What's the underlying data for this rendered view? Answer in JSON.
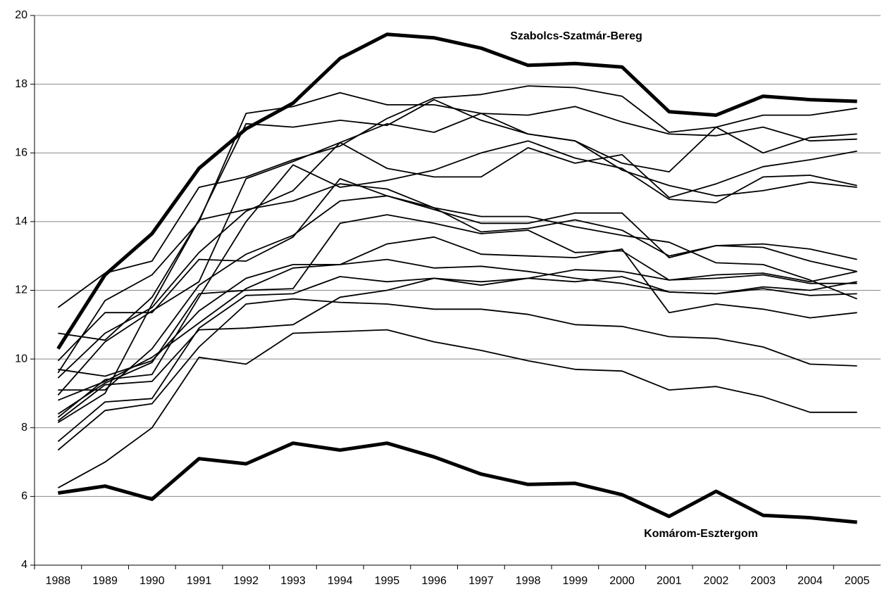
{
  "chart_data": {
    "type": "line",
    "categories": [
      "1988",
      "1989",
      "1990",
      "1991",
      "1992",
      "1993",
      "1994",
      "1995",
      "1996",
      "1997",
      "1998",
      "1999",
      "2000",
      "2001",
      "2002",
      "2003",
      "2004",
      "2005"
    ],
    "ylim": [
      4,
      20
    ],
    "yticks": [
      4,
      6,
      8,
      10,
      12,
      14,
      16,
      18,
      20
    ],
    "grid": true,
    "series": [
      {
        "name": "Szabolcs-Szatmár-Bereg",
        "color": "#000000",
        "values": [
          10.3,
          12.45,
          13.65,
          15.55,
          16.7,
          17.45,
          18.75,
          19.45,
          19.35,
          19.05,
          18.55,
          18.6,
          18.5,
          17.2,
          17.1,
          17.65,
          17.55,
          17.5
        ]
      },
      {
        "name": "Komárom-Esztergom",
        "color": "#000000",
        "values": [
          6.1,
          6.3,
          5.92,
          7.1,
          6.95,
          7.55,
          7.35,
          7.55,
          7.15,
          6.65,
          6.35,
          6.38,
          6.05,
          5.42,
          6.15,
          5.45,
          5.38,
          5.25
        ]
      },
      {
        "color": "#000000",
        "values": [
          11.5,
          12.5,
          12.85,
          15.0,
          15.3,
          15.8,
          16.2,
          17.0,
          17.6,
          17.7,
          17.95,
          17.9,
          17.65,
          16.6,
          16.75,
          17.1,
          17.1,
          17.3
        ]
      },
      {
        "color": "#000000",
        "values": [
          9.95,
          11.35,
          11.35,
          12.9,
          12.85,
          13.55,
          15.25,
          14.75,
          14.35,
          13.95,
          13.95,
          14.25,
          14.25,
          12.95,
          13.3,
          13.35,
          13.2,
          12.9
        ]
      },
      {
        "color": "#000000",
        "values": [
          10.75,
          10.55,
          11.8,
          14.05,
          14.35,
          14.6,
          15.1,
          14.95,
          14.4,
          14.15,
          14.15,
          13.85,
          13.6,
          13.4,
          12.8,
          12.75,
          12.3,
          11.75
        ]
      },
      {
        "color": "#000000",
        "values": [
          9.6,
          11.7,
          12.45,
          14.0,
          17.15,
          17.35,
          17.75,
          17.4,
          17.4,
          17.15,
          17.1,
          17.35,
          16.9,
          16.55,
          16.5,
          16.75,
          16.35,
          16.4
        ]
      },
      {
        "color": "#000000",
        "values": [
          9.45,
          10.75,
          11.5,
          13.1,
          14.3,
          14.9,
          16.3,
          15.55,
          15.3,
          15.3,
          16.15,
          15.7,
          15.95,
          14.7,
          15.1,
          15.6,
          15.8,
          16.05
        ]
      },
      {
        "color": "#000000",
        "values": [
          9.1,
          9.1,
          10.3,
          12.15,
          13.05,
          13.6,
          14.6,
          14.75,
          14.4,
          13.7,
          13.8,
          14.05,
          13.75,
          13.0,
          13.3,
          13.25,
          12.85,
          12.55
        ]
      },
      {
        "color": "#000000",
        "values": [
          8.95,
          10.5,
          11.4,
          12.25,
          15.25,
          15.75,
          16.3,
          16.85,
          16.6,
          17.15,
          16.55,
          16.35,
          15.5,
          15.05,
          14.75,
          14.9,
          15.15,
          15.0
        ]
      },
      {
        "color": "#000000",
        "values": [
          8.4,
          9.3,
          9.9,
          11.9,
          12.0,
          12.05,
          13.95,
          14.2,
          13.95,
          13.65,
          13.75,
          13.1,
          13.15,
          12.3,
          12.45,
          12.5,
          12.25,
          12.55
        ]
      },
      {
        "color": "#000000",
        "values": [
          8.3,
          9.4,
          9.55,
          11.8,
          14.0,
          15.65,
          15.0,
          15.2,
          15.5,
          16.0,
          16.35,
          15.85,
          15.55,
          14.65,
          14.55,
          15.3,
          15.35,
          15.05
        ]
      },
      {
        "color": "#000000",
        "values": [
          8.15,
          9.0,
          11.6,
          14.05,
          16.85,
          16.75,
          16.95,
          16.8,
          17.55,
          16.95,
          16.55,
          16.35,
          15.7,
          15.45,
          16.75,
          16.0,
          16.45,
          16.55
        ]
      },
      {
        "color": "#000000",
        "values": [
          7.6,
          8.75,
          8.85,
          10.9,
          11.85,
          11.9,
          12.4,
          12.25,
          12.35,
          12.25,
          12.35,
          12.6,
          12.55,
          12.3,
          12.35,
          12.45,
          12.2,
          12.2
        ]
      },
      {
        "color": "#000000",
        "values": [
          7.35,
          8.5,
          8.7,
          10.35,
          11.6,
          11.75,
          11.65,
          11.6,
          11.45,
          11.45,
          11.3,
          11.0,
          10.95,
          10.65,
          10.6,
          10.35,
          9.85,
          9.8
        ]
      },
      {
        "color": "#000000",
        "values": [
          6.25,
          7.0,
          8.0,
          10.05,
          9.85,
          10.75,
          10.8,
          10.85,
          10.5,
          10.25,
          9.95,
          9.7,
          9.65,
          9.1,
          9.2,
          8.9,
          8.45,
          8.45
        ]
      },
      {
        "color": "#000000",
        "values": [
          9.7,
          9.5,
          9.95,
          11.4,
          12.35,
          12.75,
          12.75,
          12.9,
          12.65,
          12.7,
          12.55,
          12.35,
          12.2,
          11.95,
          11.9,
          12.05,
          11.85,
          11.9
        ]
      },
      {
        "color": "#000000",
        "values": [
          8.8,
          9.35,
          10.05,
          11.05,
          12.05,
          12.65,
          12.75,
          13.35,
          13.55,
          13.05,
          13.0,
          12.95,
          13.2,
          11.35,
          11.6,
          11.45,
          11.2,
          11.35
        ]
      },
      {
        "color": "#000000",
        "values": [
          8.2,
          9.25,
          9.35,
          10.85,
          10.9,
          11.0,
          11.8,
          12.0,
          12.35,
          12.15,
          12.35,
          12.25,
          12.4,
          11.95,
          11.9,
          12.1,
          12.0,
          12.25
        ]
      }
    ]
  }
}
